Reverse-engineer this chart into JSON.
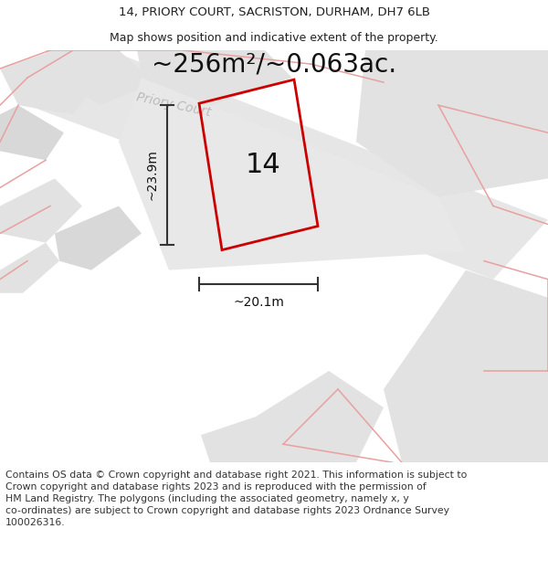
{
  "title_line1": "14, PRIORY COURT, SACRISTON, DURHAM, DH7 6LB",
  "title_line2": "Map shows position and indicative extent of the property.",
  "area_text": "~256m²/~0.063ac.",
  "number_label": "14",
  "dim_height": "~23.9m",
  "dim_width": "~20.1m",
  "road_label": "Priory Court",
  "footer_text": "Contains OS data © Crown copyright and database right 2021. This information is subject to Crown copyright and database rights 2023 and is reproduced with the permission of HM Land Registry. The polygons (including the associated geometry, namely x, y co-ordinates) are subject to Crown copyright and database rights 2023 Ordnance Survey 100026316.",
  "plot_bg_color": "#ffffff",
  "map_bg_color": "#f0f0f0",
  "gray_block_color": "#e2e2e2",
  "gray_block_color2": "#d8d8d8",
  "road_color": "#dedede",
  "red_outline_color": "#cc0000",
  "pink_line_color": "#e8a0a0",
  "title_fontsize": 9.5,
  "subtitle_fontsize": 9,
  "area_fontsize": 20,
  "number_fontsize": 22,
  "dim_fontsize": 10,
  "road_label_fontsize": 10,
  "footer_fontsize": 7.8
}
